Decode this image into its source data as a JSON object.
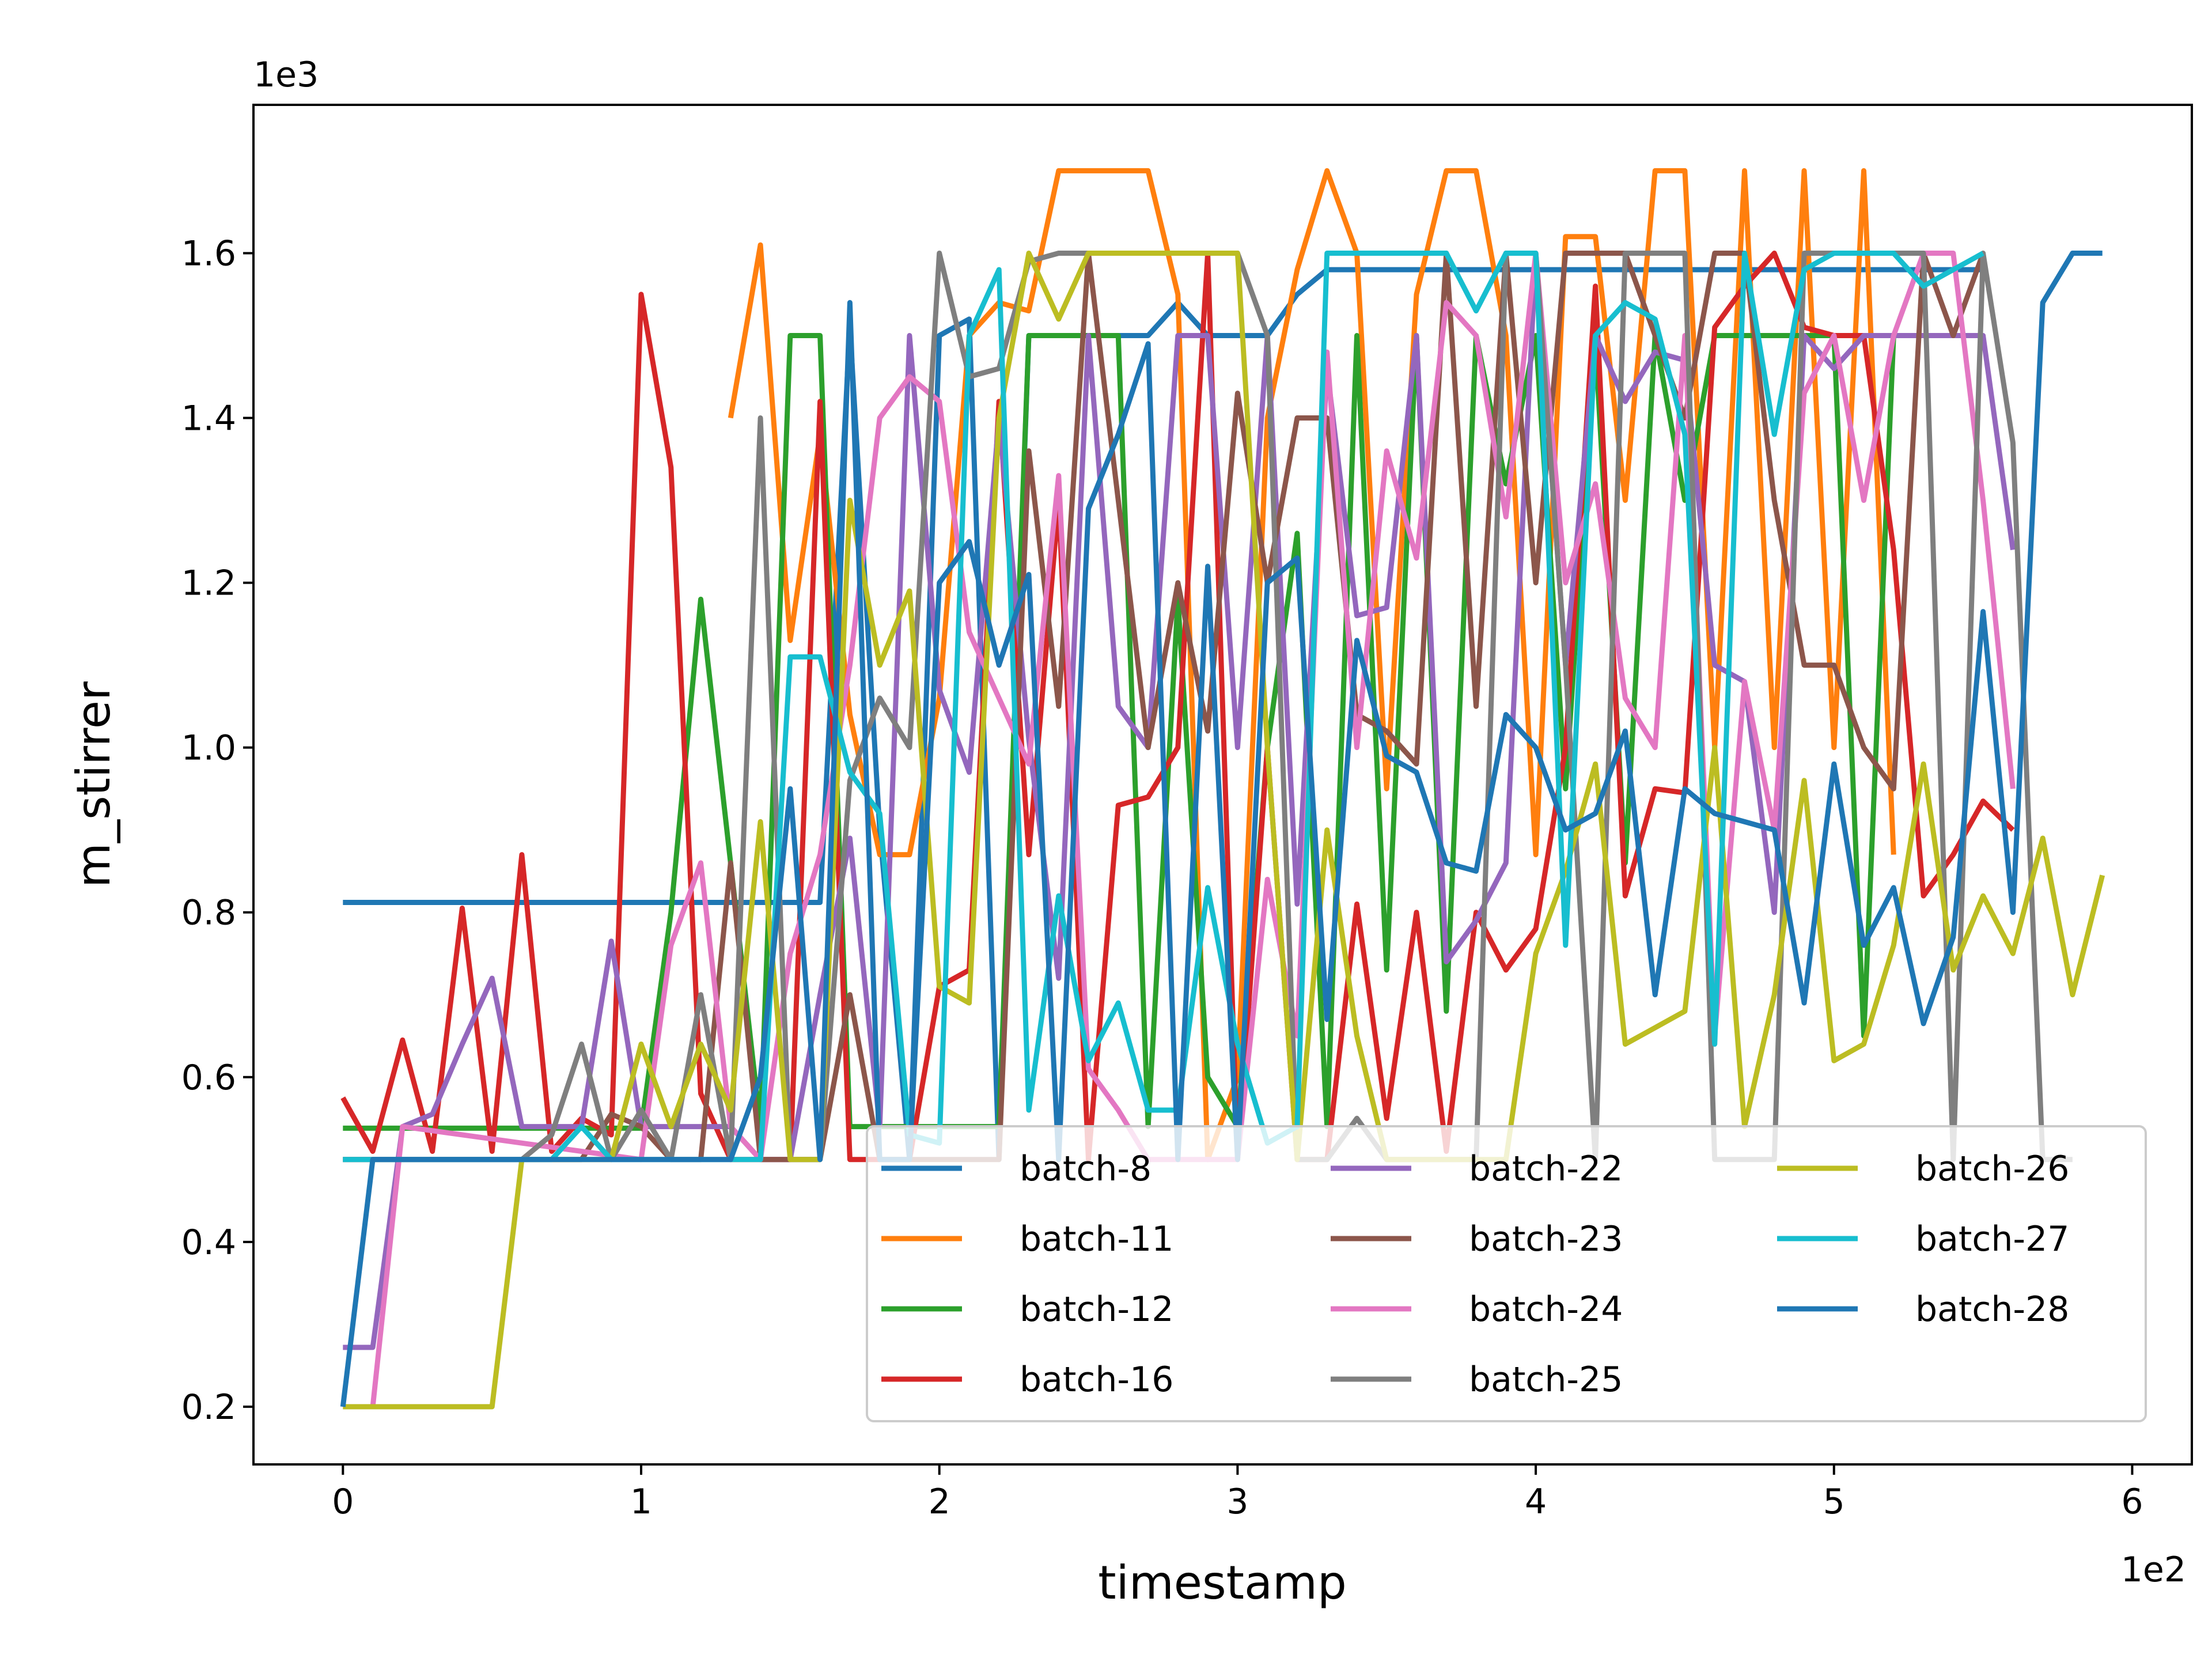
{
  "chart_data": {
    "type": "line",
    "xlabel": "timestamp",
    "ylabel": "m_stirrer",
    "x_offset_label": "1e2",
    "y_offset_label": "1e3",
    "xlim": [
      -30,
      620
    ],
    "ylim": [
      130,
      1780
    ],
    "x_ticks": [
      0,
      100,
      200,
      300,
      400,
      500,
      600
    ],
    "x_tick_labels": [
      "0",
      "1",
      "2",
      "3",
      "4",
      "5",
      "6"
    ],
    "y_ticks": [
      200,
      400,
      600,
      800,
      1000,
      1200,
      1400,
      1600
    ],
    "y_tick_labels": [
      "0.2",
      "0.4",
      "0.6",
      "0.8",
      "1.0",
      "1.2",
      "1.4",
      "1.6"
    ],
    "grid": false,
    "legend": {
      "placement": "lower-right",
      "columns": 3
    },
    "series": [
      {
        "name": "batch-8",
        "color": "#1f77b4",
        "x": [
          0,
          10,
          100,
          110,
          120,
          130,
          140,
          150,
          160,
          170,
          180,
          190,
          200,
          210,
          220,
          230,
          240,
          250,
          260,
          270,
          280,
          290,
          300,
          310,
          320,
          330,
          340,
          350,
          360,
          370,
          380,
          390,
          400,
          410,
          420,
          430,
          440,
          450,
          460,
          470,
          480,
          490,
          500,
          510,
          520,
          530,
          540,
          550
        ],
        "y": [
          812,
          812,
          812,
          812,
          812,
          812,
          812,
          812,
          812,
          1510,
          900,
          500,
          1500,
          1520,
          500,
          1500,
          1500,
          1500,
          1500,
          1500,
          1540,
          1500,
          1500,
          1500,
          1550,
          1580,
          1580,
          1580,
          1580,
          1580,
          1580,
          1580,
          1580,
          1580,
          1580,
          1580,
          1580,
          1580,
          1580,
          1580,
          1580,
          1580,
          1580,
          1580,
          1580,
          1580,
          1580,
          1580
        ]
      },
      {
        "name": "batch-11",
        "color": "#ff7f0e",
        "x": [
          130,
          140,
          150,
          160,
          170,
          180,
          190,
          200,
          210,
          220,
          230,
          240,
          250,
          260,
          270,
          280,
          290,
          300,
          310,
          320,
          330,
          340,
          350,
          360,
          370,
          380,
          390,
          400,
          410,
          420,
          430,
          440,
          450,
          460,
          470,
          480,
          490,
          500,
          510,
          520
        ],
        "y": [
          1400,
          1610,
          1130,
          1380,
          1040,
          870,
          870,
          1060,
          1500,
          1540,
          1530,
          1700,
          1700,
          1700,
          1700,
          1550,
          500,
          600,
          1400,
          1580,
          1700,
          1600,
          950,
          1550,
          1700,
          1700,
          1500,
          870,
          1620,
          1620,
          1300,
          1700,
          1700,
          1000,
          1700,
          1000,
          1700,
          1000,
          1700,
          870
        ]
      },
      {
        "name": "batch-12",
        "color": "#2ca02c",
        "x": [
          0,
          100,
          110,
          120,
          130,
          140,
          150,
          160,
          170,
          180,
          190,
          200,
          210,
          220,
          230,
          240,
          250,
          260,
          270,
          280,
          290,
          300,
          310,
          320,
          330,
          340,
          350,
          360,
          370,
          380,
          390,
          400,
          410,
          420,
          430,
          440,
          450,
          460,
          470,
          480,
          490,
          500,
          510,
          520,
          530,
          540,
          550
        ],
        "y": [
          538,
          538,
          800,
          1180,
          860,
          540,
          1500,
          1500,
          540,
          540,
          540,
          540,
          540,
          540,
          1500,
          1500,
          1500,
          1500,
          540,
          1180,
          600,
          540,
          1000,
          1260,
          540,
          1500,
          730,
          1500,
          680,
          1500,
          1320,
          1500,
          950,
          1490,
          860,
          1500,
          1300,
          1500,
          1500,
          1500,
          1500,
          1500,
          650,
          1500,
          1500,
          1500,
          1500
        ]
      },
      {
        "name": "batch-16",
        "color": "#d62728",
        "x": [
          0,
          10,
          20,
          30,
          40,
          50,
          60,
          70,
          80,
          90,
          100,
          110,
          120,
          130,
          140,
          150,
          160,
          170,
          180,
          190,
          200,
          210,
          220,
          230,
          240,
          250,
          260,
          270,
          280,
          290,
          300,
          310,
          320,
          330,
          340,
          350,
          360,
          370,
          380,
          390,
          400,
          410,
          420,
          430,
          440,
          450,
          460,
          470,
          480,
          490,
          500,
          510,
          520,
          530,
          540,
          550,
          560
        ],
        "y": [
          575,
          510,
          645,
          510,
          805,
          510,
          870,
          510,
          550,
          530,
          1550,
          1340,
          580,
          500,
          500,
          500,
          1420,
          500,
          500,
          500,
          710,
          730,
          1420,
          870,
          1300,
          500,
          930,
          940,
          1000,
          1600,
          500,
          1000,
          500,
          500,
          810,
          550,
          800,
          510,
          800,
          730,
          780,
          1000,
          1560,
          820,
          950,
          945,
          1510,
          1560,
          1600,
          1510,
          1500,
          1500,
          1240,
          820,
          870,
          935,
          900
        ]
      },
      {
        "name": "batch-22",
        "color": "#9467bd",
        "x": [
          0,
          10,
          20,
          30,
          40,
          50,
          60,
          70,
          80,
          90,
          100,
          110,
          120,
          130,
          140,
          150,
          160,
          170,
          180,
          190,
          200,
          210,
          220,
          230,
          240,
          250,
          260,
          270,
          280,
          290,
          300,
          310,
          320,
          330,
          340,
          350,
          360,
          370,
          380,
          390,
          400,
          410,
          420,
          430,
          440,
          450,
          460,
          470,
          480,
          490,
          500,
          510,
          520,
          530,
          540,
          550,
          560
        ],
        "y": [
          272,
          272,
          540,
          555,
          640,
          720,
          540,
          540,
          540,
          765,
          540,
          540,
          540,
          540,
          500,
          500,
          700,
          890,
          540,
          1500,
          1070,
          970,
          1400,
          1010,
          720,
          1500,
          1050,
          1000,
          1500,
          1500,
          1000,
          1500,
          810,
          1460,
          1160,
          1170,
          1500,
          740,
          790,
          860,
          1600,
          1100,
          1500,
          1420,
          1480,
          1470,
          1100,
          1080,
          800,
          1500,
          1460,
          1500,
          1500,
          1500,
          1500,
          1500,
          1240
        ]
      },
      {
        "name": "batch-23",
        "color": "#8c564b",
        "x": [
          0,
          80,
          90,
          100,
          110,
          120,
          130,
          140,
          150,
          160,
          170,
          180,
          190,
          200,
          210,
          220,
          230,
          240,
          250,
          260,
          270,
          280,
          290,
          300,
          310,
          320,
          330,
          340,
          350,
          360,
          370,
          380,
          390,
          400,
          410,
          420,
          430,
          440,
          450,
          460,
          470,
          480,
          490,
          500,
          510,
          520,
          530,
          540,
          550
        ],
        "y": [
          500,
          500,
          555,
          540,
          500,
          500,
          860,
          500,
          500,
          500,
          700,
          500,
          500,
          500,
          500,
          500,
          1360,
          1050,
          1600,
          1300,
          1000,
          1200,
          1020,
          1430,
          1200,
          1400,
          1400,
          1040,
          1020,
          980,
          1600,
          1050,
          1600,
          1200,
          1600,
          1600,
          1600,
          1500,
          1400,
          1600,
          1600,
          1300,
          1100,
          1100,
          1000,
          950,
          1600,
          1500,
          1600
        ]
      },
      {
        "name": "batch-24",
        "color": "#e377c2",
        "x": [
          10,
          20,
          100,
          110,
          120,
          130,
          140,
          150,
          160,
          170,
          180,
          190,
          200,
          210,
          220,
          230,
          240,
          250,
          260,
          270,
          280,
          290,
          300,
          310,
          320,
          330,
          340,
          350,
          360,
          370,
          380,
          390,
          400,
          410,
          420,
          430,
          440,
          450,
          460,
          470,
          480,
          490,
          500,
          510,
          520,
          530,
          540,
          550,
          560
        ],
        "y": [
          200,
          540,
          500,
          760,
          860,
          540,
          500,
          750,
          870,
          1100,
          1400,
          1450,
          1420,
          1140,
          1060,
          980,
          1330,
          610,
          560,
          500,
          500,
          500,
          500,
          840,
          650,
          1480,
          1000,
          1360,
          1230,
          1540,
          1500,
          1280,
          1600,
          1200,
          1320,
          1060,
          1000,
          1500,
          650,
          1080,
          900,
          1430,
          1500,
          1300,
          1500,
          1600,
          1600,
          1300,
          950
        ]
      },
      {
        "name": "batch-25",
        "color": "#7f7f7f",
        "x": [
          0,
          60,
          70,
          80,
          90,
          100,
          110,
          120,
          130,
          140,
          150,
          160,
          170,
          180,
          190,
          200,
          210,
          220,
          230,
          240,
          250,
          260,
          270,
          280,
          290,
          300,
          310,
          320,
          330,
          340,
          350,
          360,
          370,
          380,
          390,
          400,
          410,
          420,
          430,
          440,
          450,
          460,
          470,
          480,
          490,
          500,
          510,
          520,
          530,
          540,
          550,
          560,
          570,
          580
        ],
        "y": [
          500,
          500,
          530,
          640,
          500,
          560,
          500,
          700,
          500,
          1400,
          500,
          500,
          960,
          1060,
          1000,
          1600,
          1450,
          1460,
          1590,
          1600,
          1600,
          1600,
          1600,
          1600,
          1600,
          1600,
          1500,
          500,
          500,
          550,
          500,
          500,
          500,
          500,
          1600,
          1600,
          1100,
          500,
          1600,
          1600,
          1600,
          500,
          500,
          500,
          1600,
          1600,
          1600,
          1600,
          1600,
          500,
          1600,
          1370,
          500,
          500
        ]
      },
      {
        "name": "batch-26",
        "color": "#bcbd22",
        "x": [
          0,
          10,
          20,
          30,
          40,
          50,
          60,
          70,
          80,
          90,
          100,
          110,
          120,
          130,
          140,
          150,
          160,
          170,
          180,
          190,
          200,
          210,
          220,
          230,
          240,
          250,
          260,
          270,
          280,
          290,
          300,
          310,
          320,
          330,
          340,
          350,
          360,
          370,
          380,
          390,
          400,
          410,
          420,
          430,
          440,
          450,
          460,
          470,
          480,
          490,
          500,
          510,
          520,
          530,
          540,
          550,
          560,
          570,
          580,
          590
        ],
        "y": [
          200,
          200,
          200,
          200,
          200,
          200,
          500,
          500,
          500,
          500,
          640,
          540,
          640,
          560,
          910,
          500,
          500,
          1300,
          1100,
          1190,
          710,
          690,
          1400,
          1600,
          1520,
          1600,
          1600,
          1600,
          1600,
          1600,
          1600,
          1000,
          500,
          900,
          650,
          500,
          500,
          500,
          500,
          500,
          750,
          850,
          980,
          640,
          660,
          680,
          1000,
          540,
          700,
          960,
          620,
          640,
          760,
          980,
          730,
          820,
          750,
          890,
          700,
          845
        ]
      },
      {
        "name": "batch-27",
        "color": "#17becf",
        "x": [
          0,
          70,
          80,
          90,
          100,
          110,
          120,
          130,
          140,
          150,
          160,
          170,
          180,
          190,
          200,
          210,
          220,
          230,
          240,
          250,
          260,
          270,
          280,
          290,
          300,
          310,
          320,
          330,
          340,
          350,
          360,
          370,
          380,
          390,
          400,
          410,
          420,
          430,
          440,
          450,
          460,
          470,
          480,
          490,
          500,
          510,
          520,
          530,
          540,
          550
        ],
        "y": [
          500,
          500,
          540,
          500,
          500,
          500,
          500,
          500,
          500,
          1110,
          1110,
          970,
          920,
          530,
          520,
          1500,
          1580,
          560,
          820,
          620,
          690,
          560,
          560,
          830,
          640,
          520,
          540,
          1600,
          1600,
          1600,
          1600,
          1600,
          1530,
          1600,
          1600,
          760,
          1500,
          1540,
          1520,
          1380,
          640,
          1600,
          1380,
          1580,
          1600,
          1600,
          1600,
          1560,
          1580,
          1600
        ]
      },
      {
        "name": "batch-28",
        "color": "#1f77b4",
        "x": [
          0,
          10,
          20,
          30,
          40,
          50,
          60,
          70,
          80,
          90,
          100,
          110,
          120,
          130,
          140,
          150,
          160,
          170,
          180,
          190,
          200,
          210,
          220,
          230,
          240,
          250,
          260,
          270,
          280,
          290,
          300,
          310,
          320,
          330,
          340,
          350,
          360,
          370,
          380,
          390,
          400,
          410,
          420,
          430,
          440,
          450,
          460,
          470,
          480,
          490,
          500,
          510,
          520,
          530,
          540,
          550,
          560,
          570,
          580,
          590
        ],
        "y": [
          200,
          500,
          500,
          500,
          500,
          500,
          500,
          500,
          500,
          500,
          500,
          500,
          500,
          500,
          600,
          950,
          500,
          1540,
          500,
          500,
          1200,
          1250,
          1100,
          1210,
          500,
          1290,
          1380,
          1490,
          500,
          1220,
          500,
          1200,
          1230,
          670,
          1130,
          990,
          970,
          860,
          850,
          1040,
          1000,
          900,
          920,
          1020,
          700,
          950,
          920,
          910,
          900,
          690,
          980,
          760,
          830,
          665,
          770,
          1165,
          800,
          1540,
          1600,
          1600
        ]
      }
    ]
  }
}
